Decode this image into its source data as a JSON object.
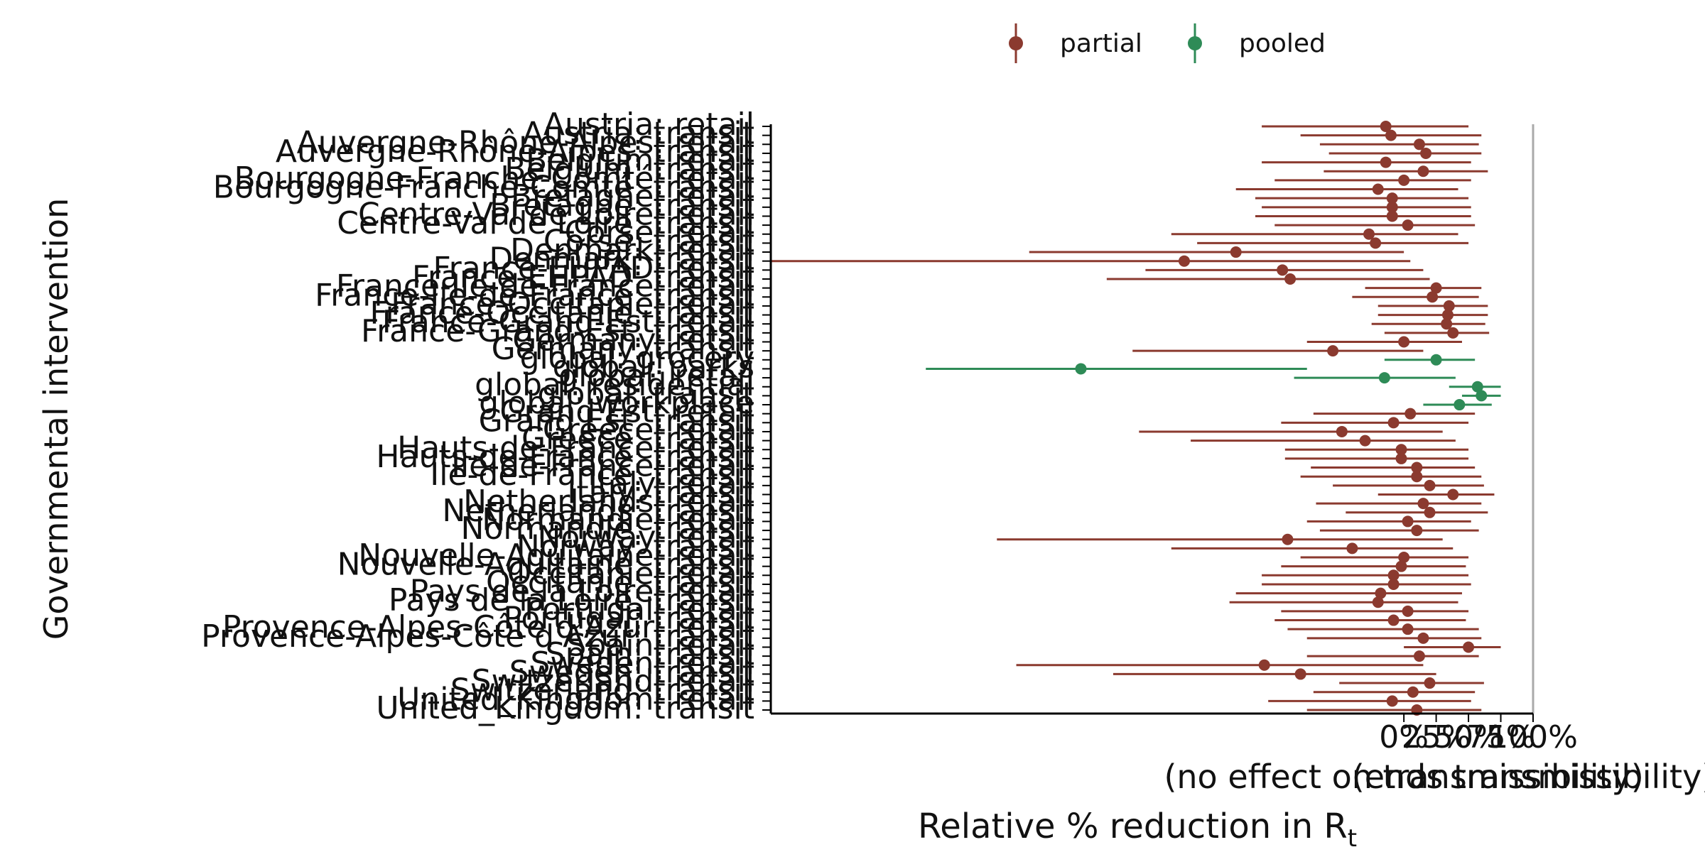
{
  "chart_data": {
    "type": "scatter",
    "subtype": "forest-plot",
    "title": "",
    "ylabel": "Governmental intervention",
    "xlabel": {
      "prefix": "Relative % reduction in ",
      "base": "R",
      "subscript": "t"
    },
    "xlim": [
      -490,
      100
    ],
    "x_ticks": [
      {
        "value": 0,
        "label": "0%"
      },
      {
        "value": 25,
        "label": "25%"
      },
      {
        "value": 50,
        "label": "50%"
      },
      {
        "value": 75,
        "label": "75%"
      },
      {
        "value": 100,
        "label": "100%"
      }
    ],
    "x_annotations": [
      {
        "value": 0,
        "text": "(no effect on transmissibility)"
      },
      {
        "value": 100,
        "text": "(ends transmissibility)"
      }
    ],
    "reference_line": 100,
    "legend": {
      "placement": "top-center",
      "entries": [
        {
          "name": "partial",
          "color": "#8b3a2f"
        },
        {
          "name": "pooled",
          "color": "#2e8b57"
        }
      ]
    },
    "series": [
      {
        "name": "partial",
        "color": "#8b3a2f"
      },
      {
        "name": "pooled",
        "color": "#2e8b57"
      }
    ],
    "rows": [
      {
        "label": "Austria: retail",
        "series": "partial",
        "x": -14,
        "lo": -110,
        "hi": 50
      },
      {
        "label": "Austria: transit",
        "series": "partial",
        "x": -10,
        "lo": -80,
        "hi": 60
      },
      {
        "label": "Auvergne-Rhône-Alpes: retail",
        "series": "partial",
        "x": 12,
        "lo": -65,
        "hi": 58
      },
      {
        "label": "Auvergne-Rhône-Alpes: transit",
        "series": "partial",
        "x": 17,
        "lo": -58,
        "hi": 60
      },
      {
        "label": "Belgium: retail",
        "series": "partial",
        "x": -14,
        "lo": -110,
        "hi": 52
      },
      {
        "label": "Belgium: transit",
        "series": "partial",
        "x": 15,
        "lo": -62,
        "hi": 65
      },
      {
        "label": "Bourgogne-Franche-Comté: retail",
        "series": "partial",
        "x": 0,
        "lo": -100,
        "hi": 52
      },
      {
        "label": "Bourgogne-Franche-Comté: transit",
        "series": "partial",
        "x": -20,
        "lo": -130,
        "hi": 42
      },
      {
        "label": "Bretagne: retail",
        "series": "partial",
        "x": -9,
        "lo": -115,
        "hi": 50
      },
      {
        "label": "Bretagne: transit",
        "series": "partial",
        "x": -9,
        "lo": -110,
        "hi": 52
      },
      {
        "label": "Centre-Val de Loire: retail",
        "series": "partial",
        "x": -9,
        "lo": -115,
        "hi": 52
      },
      {
        "label": "Centre-Val de Loire: transit",
        "series": "partial",
        "x": 3,
        "lo": -100,
        "hi": 55
      },
      {
        "label": "Corse: retail",
        "series": "partial",
        "x": -27,
        "lo": -180,
        "hi": 42
      },
      {
        "label": "Corse: transit",
        "series": "partial",
        "x": -22,
        "lo": -160,
        "hi": 50
      },
      {
        "label": "Denmark: retail",
        "series": "partial",
        "x": -130,
        "lo": -290,
        "hi": 0
      },
      {
        "label": "Denmark: transit",
        "series": "partial",
        "x": -170,
        "lo": -490,
        "hi": 5
      },
      {
        "label": "France-EHPAD: retail",
        "series": "partial",
        "x": -94,
        "lo": -200,
        "hi": 15
      },
      {
        "label": "France-EHPAD: transit",
        "series": "partial",
        "x": -88,
        "lo": -230,
        "hi": 20
      },
      {
        "label": "France-Ile-de-France: retail",
        "series": "partial",
        "x": 25,
        "lo": -30,
        "hi": 60
      },
      {
        "label": "France-Ile-de-France: transit",
        "series": "partial",
        "x": 22,
        "lo": -40,
        "hi": 58
      },
      {
        "label": "France-Occitanie: retail",
        "series": "partial",
        "x": 35,
        "lo": -20,
        "hi": 65
      },
      {
        "label": "France-Occitanie: transit",
        "series": "partial",
        "x": 34,
        "lo": -20,
        "hi": 65
      },
      {
        "label": "France-Grand-Est: retail",
        "series": "partial",
        "x": 33,
        "lo": -25,
        "hi": 63
      },
      {
        "label": "France-Grand-Est: transit",
        "series": "partial",
        "x": 38,
        "lo": -15,
        "hi": 66
      },
      {
        "label": "Germany: retail",
        "series": "partial",
        "x": 0,
        "lo": -75,
        "hi": 45
      },
      {
        "label": "Germany: transit",
        "series": "partial",
        "x": -55,
        "lo": -210,
        "hi": 15
      },
      {
        "label": "global: grocery",
        "series": "pooled",
        "x": 25,
        "lo": -15,
        "hi": 55
      },
      {
        "label": "global: parks",
        "series": "pooled",
        "x": -250,
        "lo": -370,
        "hi": -75
      },
      {
        "label": "global: retail",
        "series": "pooled",
        "x": -15,
        "lo": -85,
        "hi": 40
      },
      {
        "label": "global: residential",
        "series": "pooled",
        "x": 57,
        "lo": 35,
        "hi": 75
      },
      {
        "label": "global: transit",
        "series": "pooled",
        "x": 60,
        "lo": 45,
        "hi": 75
      },
      {
        "label": "global: workplace",
        "series": "pooled",
        "x": 43,
        "lo": 15,
        "hi": 68
      },
      {
        "label": "Grand Est: retail",
        "series": "partial",
        "x": 5,
        "lo": -70,
        "hi": 55
      },
      {
        "label": "Grand Est: transit",
        "series": "partial",
        "x": -8,
        "lo": -95,
        "hi": 50
      },
      {
        "label": "Greece: retail",
        "series": "partial",
        "x": -48,
        "lo": -205,
        "hi": 30
      },
      {
        "label": "Greece: transit",
        "series": "partial",
        "x": -30,
        "lo": -165,
        "hi": 40
      },
      {
        "label": "Hauts-de-France: retail",
        "series": "partial",
        "x": -2,
        "lo": -92,
        "hi": 50
      },
      {
        "label": "Hauts-de-France: transit",
        "series": "partial",
        "x": -2,
        "lo": -92,
        "hi": 50
      },
      {
        "label": "Ile-de-France: retail",
        "series": "partial",
        "x": 10,
        "lo": -72,
        "hi": 55
      },
      {
        "label": "Ile-de-France: transit",
        "series": "partial",
        "x": 10,
        "lo": -80,
        "hi": 60
      },
      {
        "label": "Italy: retail",
        "series": "partial",
        "x": 20,
        "lo": -55,
        "hi": 62
      },
      {
        "label": "Italy: transit",
        "series": "partial",
        "x": 38,
        "lo": -20,
        "hi": 70
      },
      {
        "label": "Netherlands: retail",
        "series": "partial",
        "x": 15,
        "lo": -68,
        "hi": 60
      },
      {
        "label": "Netherlands: transit",
        "series": "partial",
        "x": 20,
        "lo": -45,
        "hi": 65
      },
      {
        "label": "Normandie: retail",
        "series": "partial",
        "x": 3,
        "lo": -75,
        "hi": 52
      },
      {
        "label": "Normandie: transit",
        "series": "partial",
        "x": 10,
        "lo": -65,
        "hi": 58
      },
      {
        "label": "Norway: retail",
        "series": "partial",
        "x": -90,
        "lo": -315,
        "hi": 30
      },
      {
        "label": "Norway: transit",
        "series": "partial",
        "x": -40,
        "lo": -180,
        "hi": 38
      },
      {
        "label": "Nouvelle-Aquitaine: retail",
        "series": "partial",
        "x": 0,
        "lo": -80,
        "hi": 50
      },
      {
        "label": "Nouvelle-Aquitaine: transit",
        "series": "partial",
        "x": -2,
        "lo": -95,
        "hi": 48
      },
      {
        "label": "Occitanie: retail",
        "series": "partial",
        "x": -8,
        "lo": -110,
        "hi": 50
      },
      {
        "label": "Occitanie: transit",
        "series": "partial",
        "x": -8,
        "lo": -110,
        "hi": 52
      },
      {
        "label": "Pays de la Loire: retail",
        "series": "partial",
        "x": -18,
        "lo": -130,
        "hi": 45
      },
      {
        "label": "Pays de la Loire: transit",
        "series": "partial",
        "x": -20,
        "lo": -135,
        "hi": 42
      },
      {
        "label": "Portugal: retail",
        "series": "partial",
        "x": 3,
        "lo": -95,
        "hi": 50
      },
      {
        "label": "Portugal: transit",
        "series": "partial",
        "x": -8,
        "lo": -100,
        "hi": 48
      },
      {
        "label": "Provence-Alpes-Côte d'Azur: retail",
        "series": "partial",
        "x": 3,
        "lo": -90,
        "hi": 58
      },
      {
        "label": "Provence-Alpes-Côte d'Azur: transit",
        "series": "partial",
        "x": 15,
        "lo": -75,
        "hi": 60
      },
      {
        "label": "Spain: retail",
        "series": "partial",
        "x": 50,
        "lo": 0,
        "hi": 75
      },
      {
        "label": "Spain: transit",
        "series": "partial",
        "x": 12,
        "lo": -75,
        "hi": 58
      },
      {
        "label": "Sweden: retail",
        "series": "partial",
        "x": -108,
        "lo": -300,
        "hi": 15
      },
      {
        "label": "Sweden: transit",
        "series": "partial",
        "x": -80,
        "lo": -225,
        "hi": 25
      },
      {
        "label": "Switzerland: retail",
        "series": "partial",
        "x": 20,
        "lo": -50,
        "hi": 62
      },
      {
        "label": "Switzerland: transit",
        "series": "partial",
        "x": 7,
        "lo": -70,
        "hi": 55
      },
      {
        "label": "United_Kingdom: retail",
        "series": "partial",
        "x": -9,
        "lo": -105,
        "hi": 52
      },
      {
        "label": "United_Kingdom: transit",
        "series": "partial",
        "x": 10,
        "lo": -75,
        "hi": 60
      }
    ]
  }
}
